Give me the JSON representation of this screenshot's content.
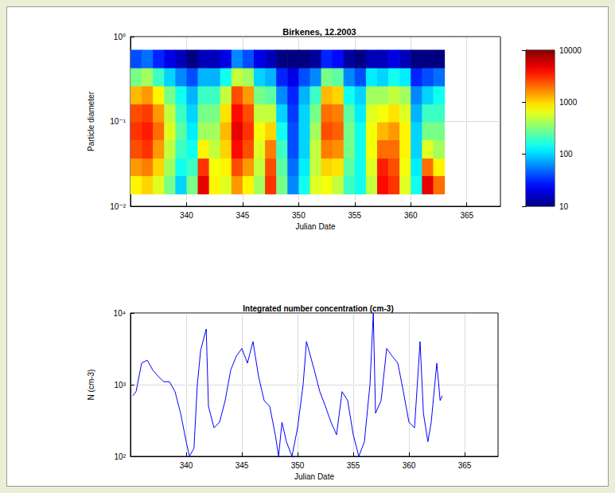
{
  "chart_data": [
    {
      "type": "heatmap",
      "title": "Birkenes, 12.2003",
      "x_label": "Julian Date",
      "y_label": "Particle diameter",
      "x_edges": [
        335,
        336,
        337,
        338,
        339,
        340,
        341,
        342,
        343,
        344,
        345,
        346,
        347,
        348,
        349,
        350,
        351,
        352,
        353,
        354,
        355,
        356,
        357,
        358,
        359,
        360,
        361,
        362,
        363
      ],
      "y_edges": [
        0.014,
        0.023,
        0.037,
        0.061,
        0.099,
        0.161,
        0.263,
        0.43,
        0.7
      ],
      "cells": [
        [
          800,
          1000,
          600,
          300,
          100,
          300,
          5000,
          800,
          600,
          1500,
          800,
          400,
          3000,
          300,
          60,
          150,
          600,
          700,
          500,
          200,
          150,
          500,
          4000,
          3000,
          600,
          150,
          5000,
          2000
        ],
        [
          1500,
          1800,
          1000,
          400,
          150,
          200,
          3000,
          700,
          800,
          2500,
          1500,
          500,
          2500,
          250,
          50,
          120,
          500,
          1000,
          900,
          250,
          150,
          600,
          3500,
          2500,
          700,
          120,
          2000,
          800
        ],
        [
          2500,
          3000,
          1500,
          500,
          200,
          150,
          800,
          500,
          1000,
          4000,
          2500,
          600,
          1800,
          200,
          40,
          100,
          500,
          1800,
          1600,
          300,
          150,
          700,
          2000,
          2000,
          800,
          100,
          600,
          400
        ],
        [
          3000,
          3500,
          2000,
          600,
          250,
          120,
          400,
          400,
          1200,
          5000,
          3000,
          700,
          1000,
          150,
          40,
          100,
          400,
          2500,
          2200,
          300,
          150,
          700,
          1200,
          1500,
          800,
          100,
          300,
          300
        ],
        [
          2500,
          2800,
          1500,
          500,
          200,
          100,
          300,
          300,
          900,
          4000,
          2500,
          500,
          500,
          100,
          35,
          100,
          300,
          2000,
          1800,
          250,
          120,
          600,
          700,
          900,
          600,
          80,
          200,
          200
        ],
        [
          1200,
          1500,
          800,
          300,
          150,
          80,
          200,
          200,
          500,
          2500,
          1500,
          300,
          250,
          60,
          30,
          80,
          200,
          1200,
          1000,
          150,
          100,
          400,
          400,
          500,
          400,
          60,
          100,
          150
        ],
        [
          300,
          400,
          200,
          100,
          60,
          40,
          80,
          80,
          150,
          500,
          400,
          100,
          80,
          30,
          20,
          40,
          60,
          300,
          250,
          60,
          40,
          120,
          100,
          150,
          120,
          30,
          40,
          50
        ],
        [
          40,
          50,
          30,
          20,
          15,
          10,
          15,
          15,
          20,
          60,
          40,
          20,
          15,
          10,
          10,
          10,
          12,
          30,
          25,
          12,
          10,
          15,
          15,
          20,
          15,
          10,
          10,
          10
        ]
      ],
      "xlim": [
        335,
        368
      ],
      "xticks": [
        340,
        345,
        350,
        355,
        360,
        365
      ],
      "ylim": [
        0.01,
        1
      ],
      "yticks": [
        {
          "value": 0.01,
          "label": "10⁻²"
        },
        {
          "value": 0.1,
          "label": "10⁻¹"
        },
        {
          "value": 1,
          "label": "10⁰"
        }
      ],
      "log": "y",
      "grid": true,
      "colorbar": {
        "range": [
          10,
          10000
        ],
        "ticks": [
          10,
          100,
          1000,
          10000
        ]
      }
    },
    {
      "type": "line",
      "title": "Integrated number concentration (cm-3)",
      "x_label": "Julian Date",
      "y_label": "N (cm-3)",
      "x": [
        335.2,
        335.5,
        336,
        336.5,
        337,
        337.5,
        338,
        338.5,
        339,
        339.5,
        340,
        340.3,
        340.7,
        341,
        341.3,
        341.8,
        342,
        342.5,
        343,
        343.5,
        344,
        344.5,
        345,
        345.5,
        346,
        346.5,
        347,
        347.5,
        348,
        348.3,
        348.6,
        349,
        349.5,
        350,
        350.5,
        350.8,
        351.5,
        352,
        352.5,
        353,
        353.5,
        354,
        354.5,
        355,
        355.5,
        356,
        356.5,
        356.8,
        357,
        357.5,
        358,
        358.5,
        359,
        359.5,
        360,
        360.5,
        361,
        361.3,
        361.7,
        362,
        362.5,
        362.8,
        363
      ],
      "values": [
        700,
        800,
        2000,
        2200,
        1600,
        1300,
        1100,
        1100,
        800,
        400,
        160,
        100,
        130,
        1000,
        3000,
        6000,
        500,
        250,
        300,
        600,
        1600,
        2500,
        3200,
        2000,
        4000,
        1300,
        600,
        500,
        200,
        100,
        300,
        160,
        100,
        250,
        1000,
        4000,
        1600,
        800,
        500,
        300,
        200,
        800,
        600,
        200,
        100,
        160,
        1000,
        10000,
        400,
        600,
        3200,
        2500,
        2000,
        800,
        300,
        250,
        4000,
        400,
        160,
        300,
        2000,
        600,
        700
      ],
      "color": "#0000ff",
      "xlim": [
        335,
        368
      ],
      "xticks": [
        340,
        345,
        350,
        355,
        360,
        365
      ],
      "ylim": [
        100,
        10000
      ],
      "yticks": [
        {
          "value": 100,
          "label": "10²"
        },
        {
          "value": 1000,
          "label": "10³"
        },
        {
          "value": 10000,
          "label": "10⁴"
        }
      ],
      "log": "y",
      "grid": true
    }
  ]
}
